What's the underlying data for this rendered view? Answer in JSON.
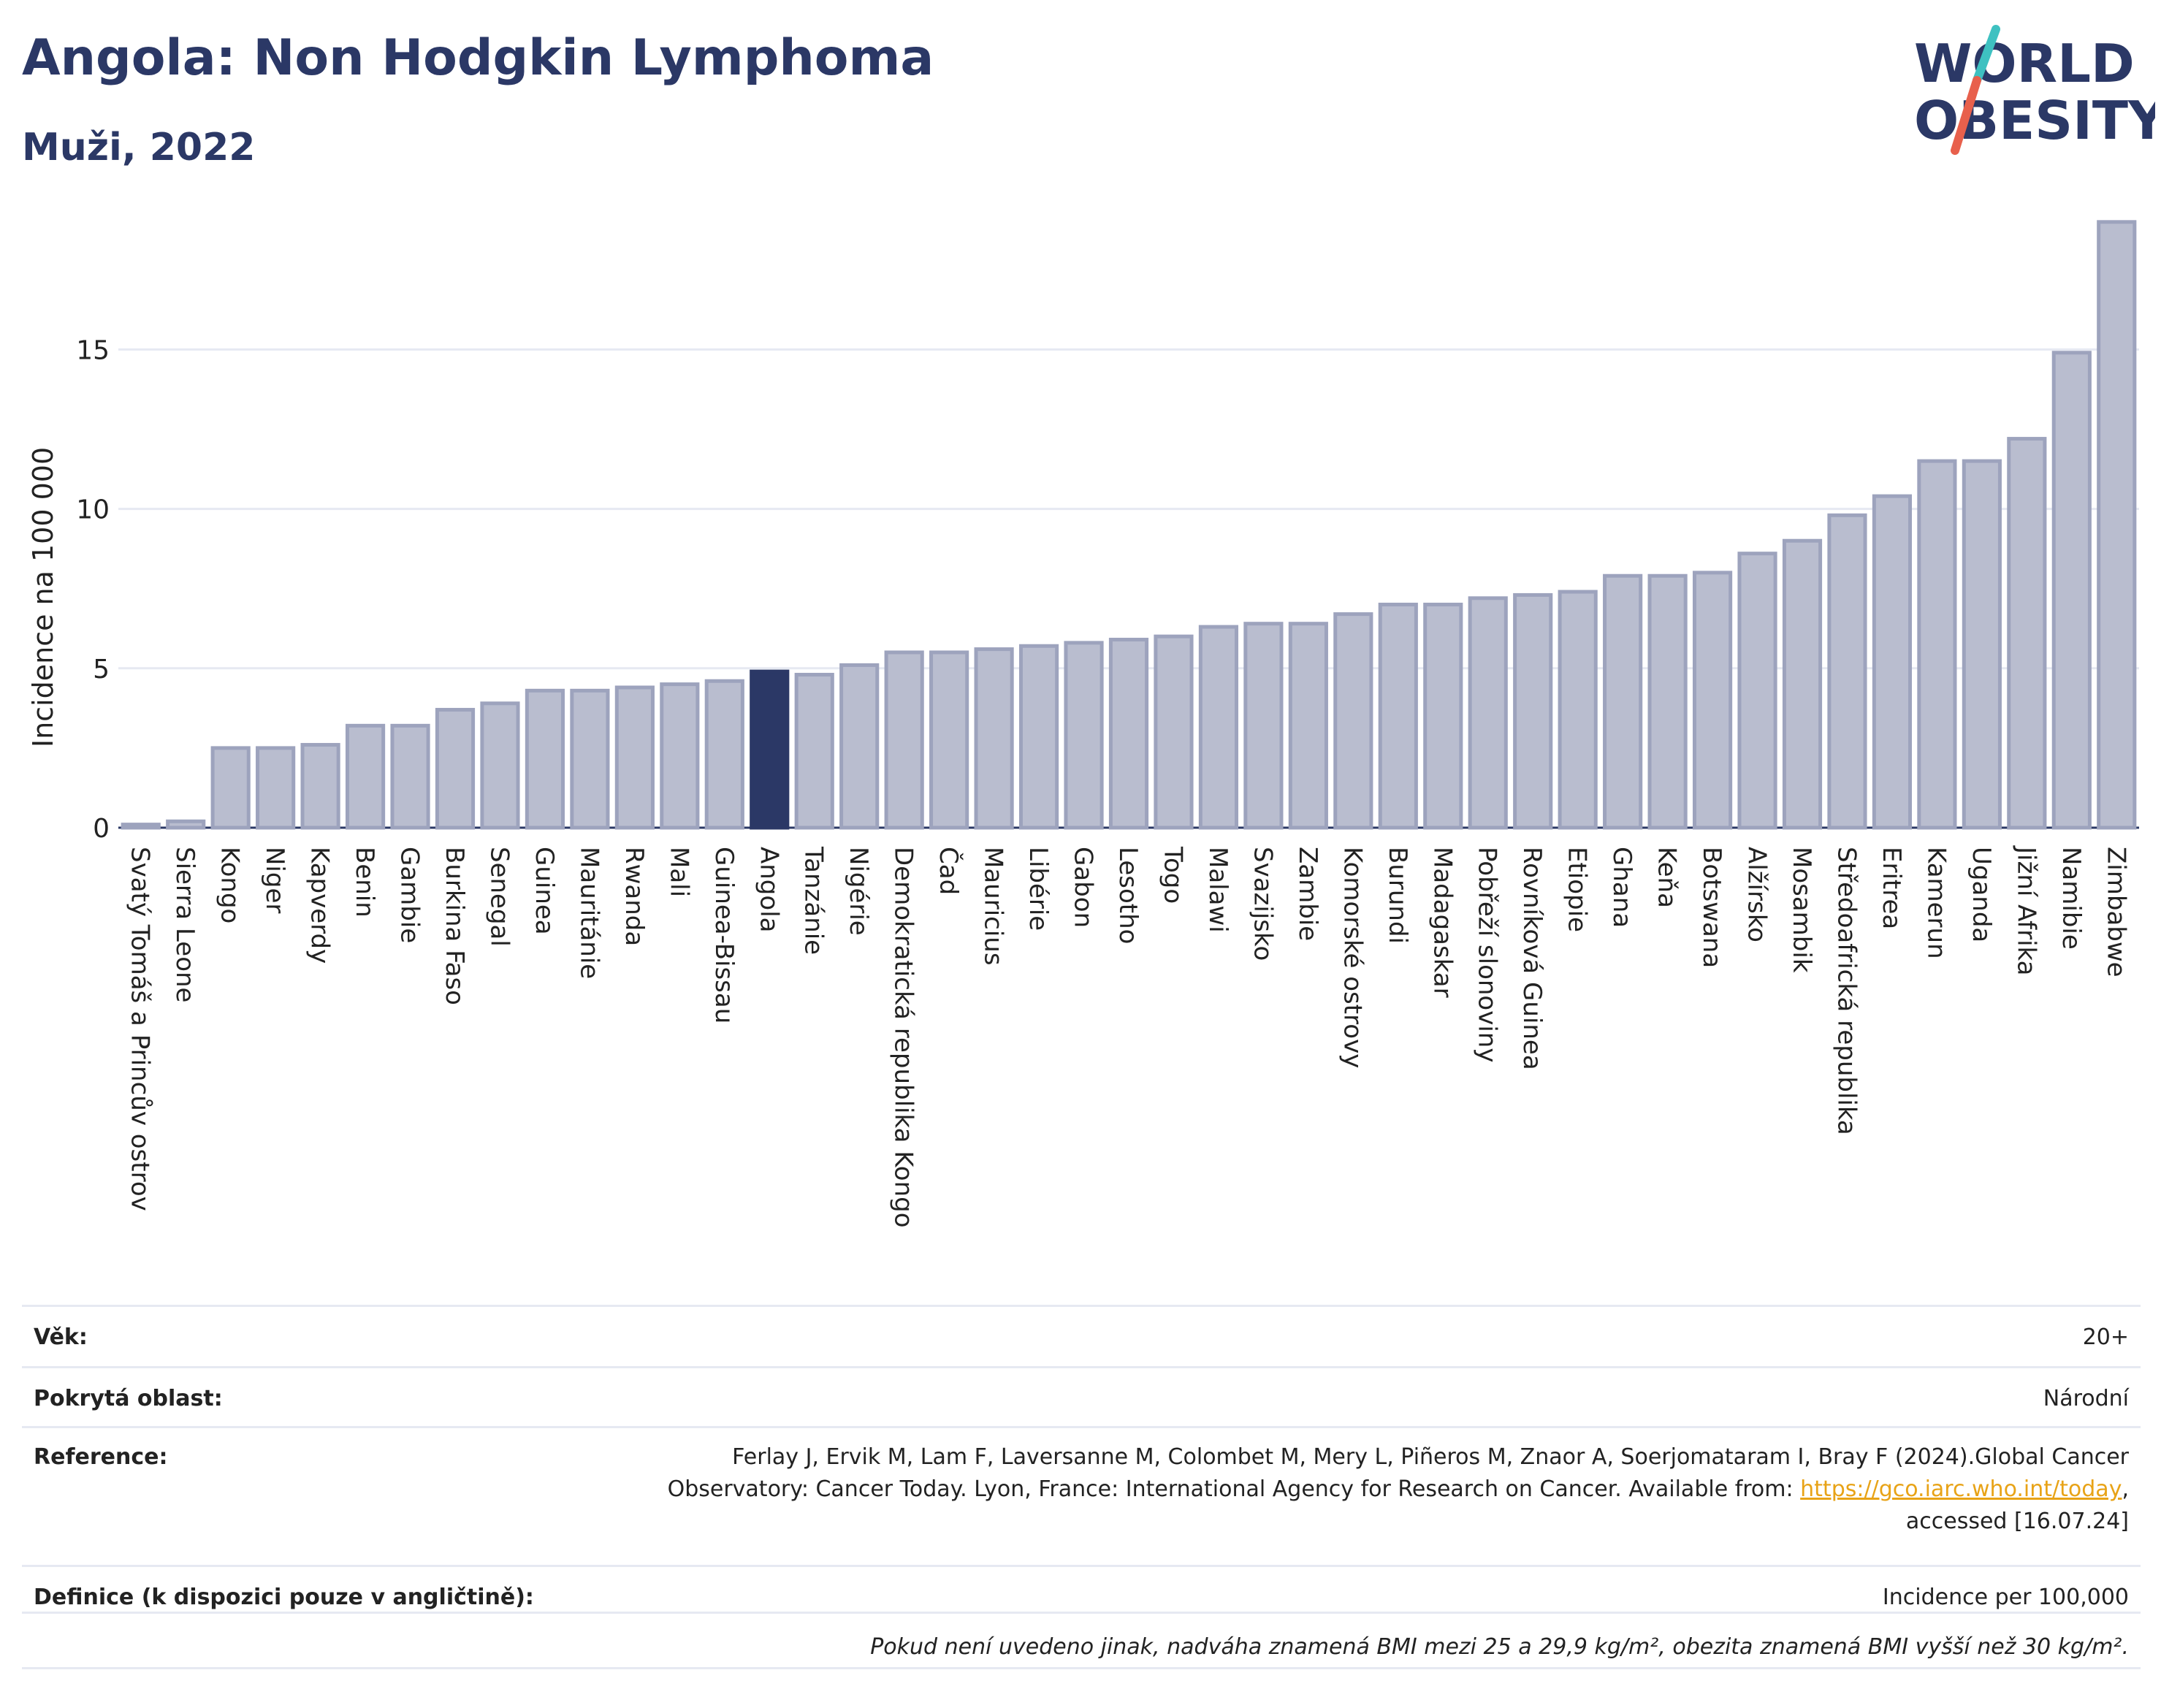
{
  "title": "Angola: Non Hodgkin Lymphoma",
  "subtitle": "Muži, 2022",
  "logo": {
    "line1": "WORLD",
    "line2": "OBESITY"
  },
  "colors": {
    "bar": "#b9bdcf",
    "bar_border": "#9da3bd",
    "highlight": "#2b3866",
    "text": "#2b3866",
    "grid": "#e6e9f2",
    "link": "#e8a317",
    "logo_teal": "#3ec1c1",
    "logo_red": "#e8604c"
  },
  "chart_data": {
    "type": "bar",
    "ylabel": "Incidence na 100 000",
    "ylim": [
      0,
      19.5
    ],
    "yticks": [
      0,
      5,
      10,
      15
    ],
    "grid": true,
    "highlight": "Angola",
    "categories": [
      "Svatý Tomáš a Princův ostrov",
      "Sierra Leone",
      "Kongo",
      "Niger",
      "Kapverdy",
      "Benin",
      "Gambie",
      "Burkina Faso",
      "Senegal",
      "Guinea",
      "Mauritánie",
      "Rwanda",
      "Mali",
      "Guinea-Bissau",
      "Angola",
      "Tanzánie",
      "Nigérie",
      "Demokratická republika Kongo",
      "Čad",
      "Mauricius",
      "Libérie",
      "Gabon",
      "Lesotho",
      "Togo",
      "Malawi",
      "Svazijsko",
      "Zambie",
      "Komorské ostrovy",
      "Burundi",
      "Madagaskar",
      "Pobřeží slonoviny",
      "Rovníková Guinea",
      "Etiopie",
      "Ghana",
      "Keňa",
      "Botswana",
      "Alžírsko",
      "Mosambik",
      "Středoafrická republika",
      "Eritrea",
      "Kamerun",
      "Uganda",
      "Jižní Afrika",
      "Namibie",
      "Zimbabwe"
    ],
    "values": [
      0.1,
      0.2,
      2.5,
      2.5,
      2.6,
      3.2,
      3.2,
      3.7,
      3.9,
      4.3,
      4.3,
      4.4,
      4.5,
      4.6,
      4.9,
      4.8,
      5.1,
      5.5,
      5.5,
      5.6,
      5.7,
      5.8,
      5.9,
      6.0,
      6.3,
      6.4,
      6.4,
      6.7,
      7.0,
      7.0,
      7.2,
      7.3,
      7.4,
      7.9,
      7.9,
      8.0,
      8.6,
      9.0,
      9.8,
      10.4,
      11.5,
      11.5,
      12.2,
      14.9,
      19.0
    ]
  },
  "info": {
    "age_label": "Věk:",
    "age_value": "20+",
    "area_label": "Pokrytá oblast:",
    "area_value": "Národní",
    "ref_label": "Reference:",
    "ref_text1": "Ferlay J, Ervik M, Lam F, Laversanne M, Colombet M, Mery L, Piñeros M, Znaor A, Soerjomataram I, Bray F (2024).Global Cancer Observatory: Cancer Today. Lyon, France: International Agency for Research on Cancer. Available from: ",
    "ref_link": "https://gco.iarc.who.int/today",
    "ref_text2": ", accessed [16.07.24]",
    "def_label": "Definice (k dispozici pouze v angličtině):",
    "def_value": "Incidence per 100,000",
    "note": "Pokud není uvedeno jinak, nadváha znamená BMI mezi 25 a 29,9 kg/m², obezita znamená BMI vyšší než 30 kg/m²."
  }
}
